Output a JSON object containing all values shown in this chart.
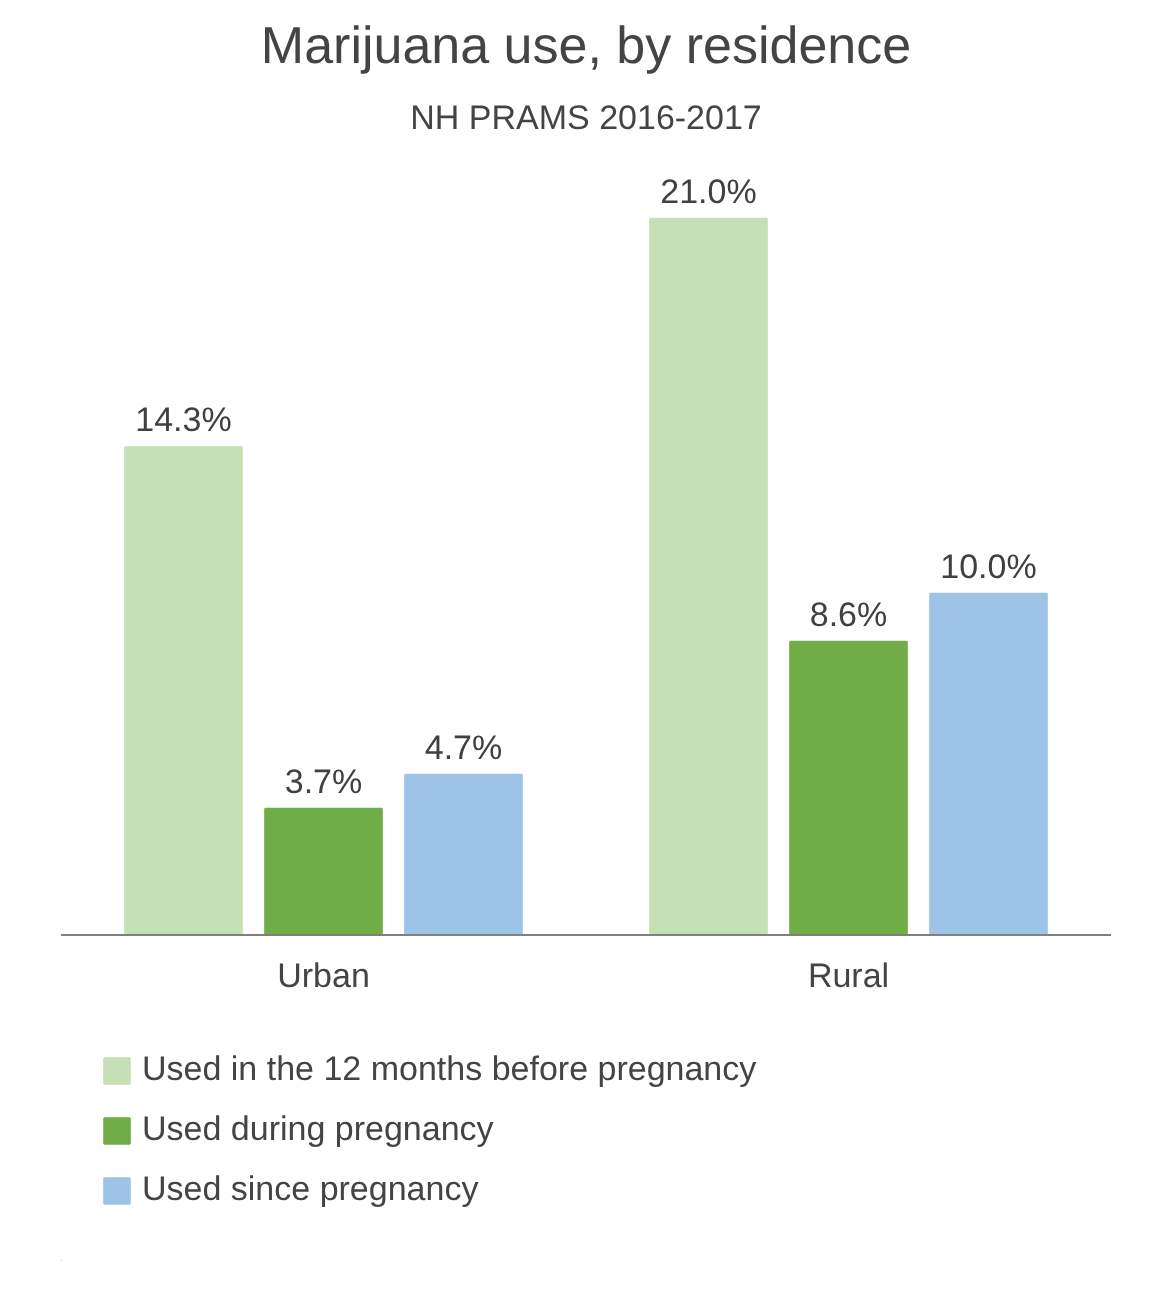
{
  "chart_data": {
    "type": "bar",
    "title": "Marijuana use, by residence",
    "subtitle": "NH PRAMS 2016-2017",
    "categories": [
      "Urban",
      "Rural"
    ],
    "series": [
      {
        "name": "Used in the 12 months before pregnancy",
        "color": "#c5e0b4",
        "values": [
          14.3,
          21.0
        ],
        "value_labels": [
          "14.3%",
          "21.0%"
        ]
      },
      {
        "name": "Used during pregnancy",
        "color": "#70ad47",
        "values": [
          3.7,
          8.6
        ],
        "value_labels": [
          "3.7%",
          "8.6%"
        ]
      },
      {
        "name": "Used since pregnancy",
        "color": "#9dc3e6",
        "values": [
          4.7,
          10.0
        ],
        "value_labels": [
          "4.7%",
          "10.0%"
        ]
      }
    ],
    "legend": "bottom"
  }
}
